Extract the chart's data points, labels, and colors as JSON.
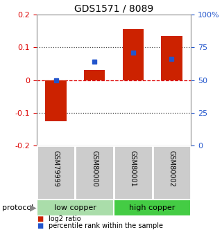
{
  "title": "GDS1571 / 8089",
  "samples": [
    "GSM79999",
    "GSM80000",
    "GSM80001",
    "GSM80002"
  ],
  "log2_ratio": [
    -0.125,
    0.03,
    0.155,
    0.135
  ],
  "percentile_rank": [
    0.5,
    0.64,
    0.71,
    0.66
  ],
  "bar_color": "#cc2200",
  "blue_color": "#2255cc",
  "ylim": [
    -0.2,
    0.2
  ],
  "yticks_left": [
    -0.2,
    -0.1,
    0.0,
    0.1,
    0.2
  ],
  "yticks_right": [
    0,
    25,
    50,
    75,
    100
  ],
  "ytick_labels_left": [
    "-0.2",
    "-0.1",
    "0",
    "0.1",
    "0.2"
  ],
  "ytick_labels_right": [
    "0",
    "25",
    "50",
    "75",
    "100%"
  ],
  "hline_0_color": "#dd0000",
  "hline_dotted_color": "#444444",
  "groups": [
    {
      "label": "low copper",
      "color": "#aaddaa"
    },
    {
      "label": "high copper",
      "color": "#44cc44"
    }
  ],
  "protocol_label": "protocol",
  "legend_red_label": "log2 ratio",
  "legend_blue_label": "percentile rank within the sample",
  "bg_color": "#ffffff",
  "sample_box_color": "#cccccc",
  "bar_width": 0.55
}
